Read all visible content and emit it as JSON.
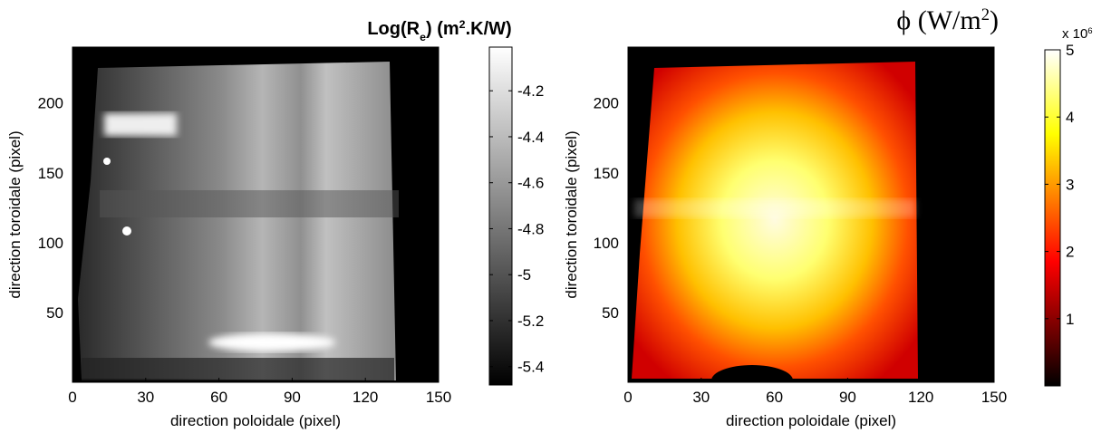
{
  "chart_data": [
    {
      "type": "heatmap",
      "colormap": "gray",
      "title": [
        "Log(R",
        "e",
        ") (m",
        "2",
        ".K/W)"
      ],
      "x_label": "direction poloidale (pixel)",
      "y_label": "direction toroidale (pixel)",
      "xlim": [
        0,
        150
      ],
      "xticks": [
        0,
        30,
        60,
        90,
        120,
        150
      ],
      "ylim": [
        0,
        240
      ],
      "yticks": [
        50,
        100,
        150,
        200
      ],
      "clim": [
        -5.48,
        -4.01
      ],
      "cticks": [
        -4.2,
        -4.4,
        -4.6,
        -4.8,
        -5,
        -5.2,
        -5.4
      ]
    },
    {
      "type": "heatmap",
      "colormap": "hot",
      "title": [
        "ϕ (W/m",
        "2",
        ")"
      ],
      "colorbar_scale": [
        "x 10",
        "6"
      ],
      "x_label": "direction poloidale (pixel)",
      "y_label": "direction toroidale (pixel)",
      "xlim": [
        0,
        150
      ],
      "xticks": [
        0,
        30,
        60,
        90,
        120,
        150
      ],
      "ylim": [
        0,
        240
      ],
      "yticks": [
        50,
        100,
        150,
        200
      ],
      "clim": [
        0,
        5
      ],
      "cticks": [
        1,
        2,
        3,
        4,
        5
      ]
    }
  ]
}
